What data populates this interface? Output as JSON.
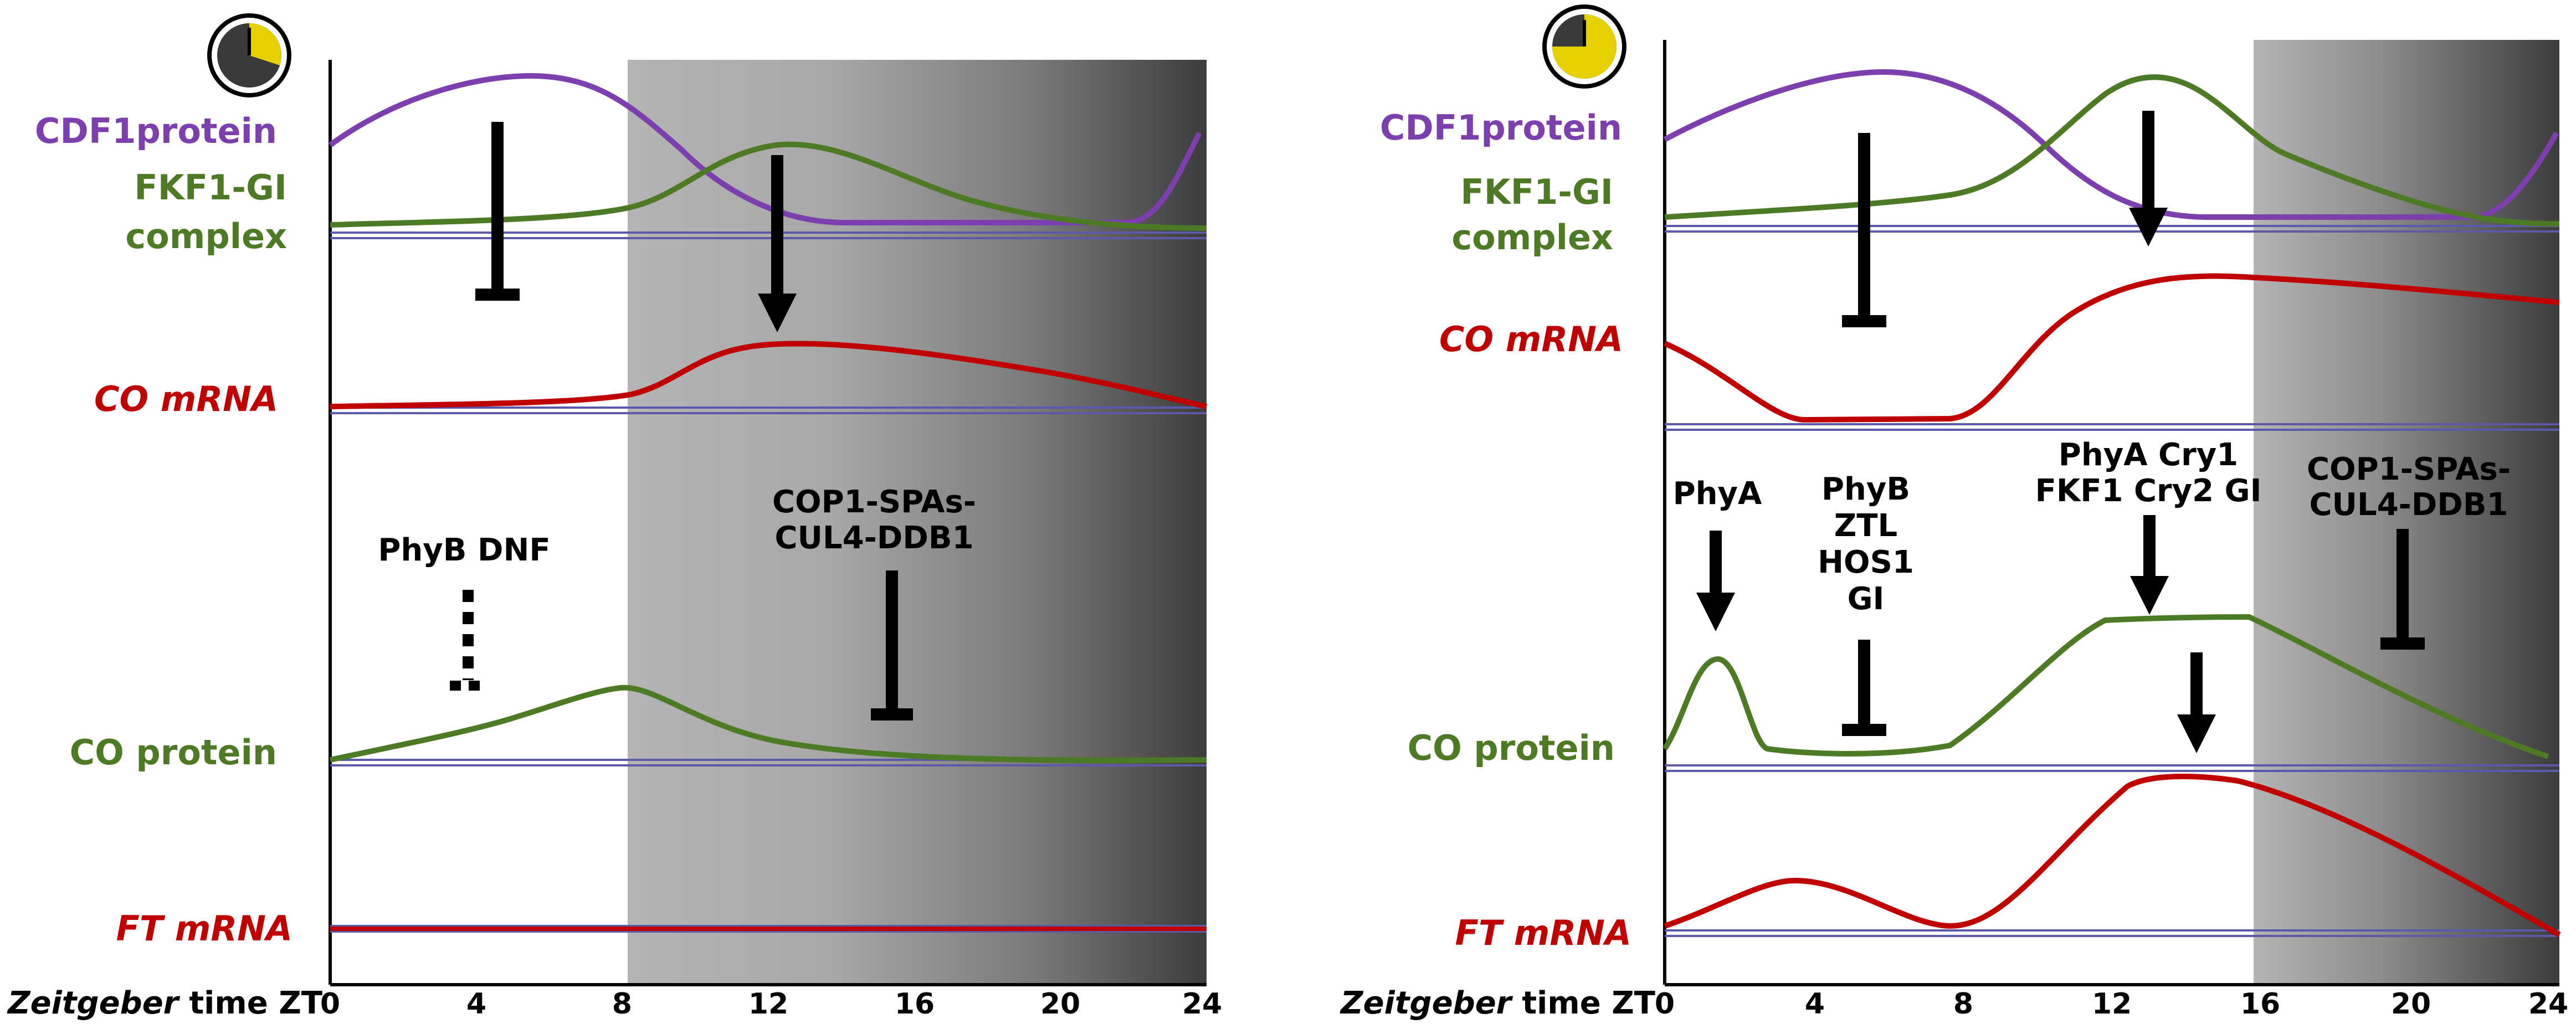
{
  "colors": {
    "purple": "#7b3fae",
    "green": "#4d7a24",
    "red": "#c00000",
    "dash": "#5a5aa8",
    "clock_face": "#e5d000"
  },
  "icons": {
    "clock": "clock-icon"
  },
  "left_panel": {
    "labels": {
      "cdf1": "CDF1protein",
      "fkf1_line1": "FKF1-GI",
      "fkf1_line2": "complex",
      "co_mrna": "CO mRNA",
      "co_protein": "CO protein",
      "ft_mrna": "FT mRNA"
    },
    "annotations": {
      "phyb_dnf": "PhyB DNF",
      "cop1_line1": "COP1-SPAs-",
      "cop1_line2": "CUL4-DDB1"
    },
    "axis": {
      "title_italic": "Zeitgeber",
      "title_rest": "time ZT",
      "ticks": [
        "0",
        "4",
        "8",
        "12",
        "16",
        "20",
        "24"
      ]
    }
  },
  "right_panel": {
    "labels": {
      "cdf1": "CDF1protein",
      "fkf1_line1": "FKF1-GI",
      "fkf1_line2": "complex",
      "co_mrna": "CO mRNA",
      "co_protein": "CO protein",
      "ft_mrna": "FT mRNA"
    },
    "annotations": {
      "phya": "PhyA",
      "phyb_1": "PhyB",
      "phyb_2": "ZTL",
      "phyb_3": "HOS1",
      "phyb_4": "GI",
      "phya_cry_1": "PhyA Cry1",
      "phya_cry_2": "FKF1 Cry2 GI",
      "cop1_line1": "COP1-SPAs-",
      "cop1_line2": "CUL4-DDB1"
    },
    "axis": {
      "title_italic": "Zeitgeber",
      "title_rest": "time ZT",
      "ticks": [
        "0",
        "4",
        "8",
        "12",
        "16",
        "20",
        "24"
      ]
    }
  }
}
